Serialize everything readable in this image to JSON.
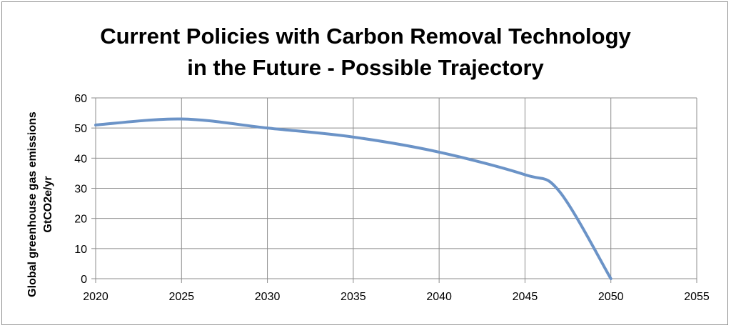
{
  "chart_data": {
    "type": "line",
    "title": [
      "Current Policies with Carbon Removal Technology",
      "in the Future - Possible Trajectory"
    ],
    "xlabel": "",
    "ylabel": [
      "Global greenhouse gas emissions",
      "GtCO2e/yr"
    ],
    "xlim": [
      2020,
      2055
    ],
    "ylim": [
      0,
      60
    ],
    "x_ticks": [
      2020,
      2025,
      2030,
      2035,
      2040,
      2045,
      2050,
      2055
    ],
    "y_ticks": [
      0,
      10,
      20,
      30,
      40,
      50,
      60
    ],
    "grid": true,
    "legend": "none",
    "series": [
      {
        "color": "#6b93c7",
        "x": [
          2020,
          2025,
          2030,
          2035,
          2040,
          2045,
          2047,
          2050
        ],
        "y": [
          51,
          53,
          50,
          47,
          42,
          34.5,
          29,
          0
        ]
      }
    ]
  }
}
